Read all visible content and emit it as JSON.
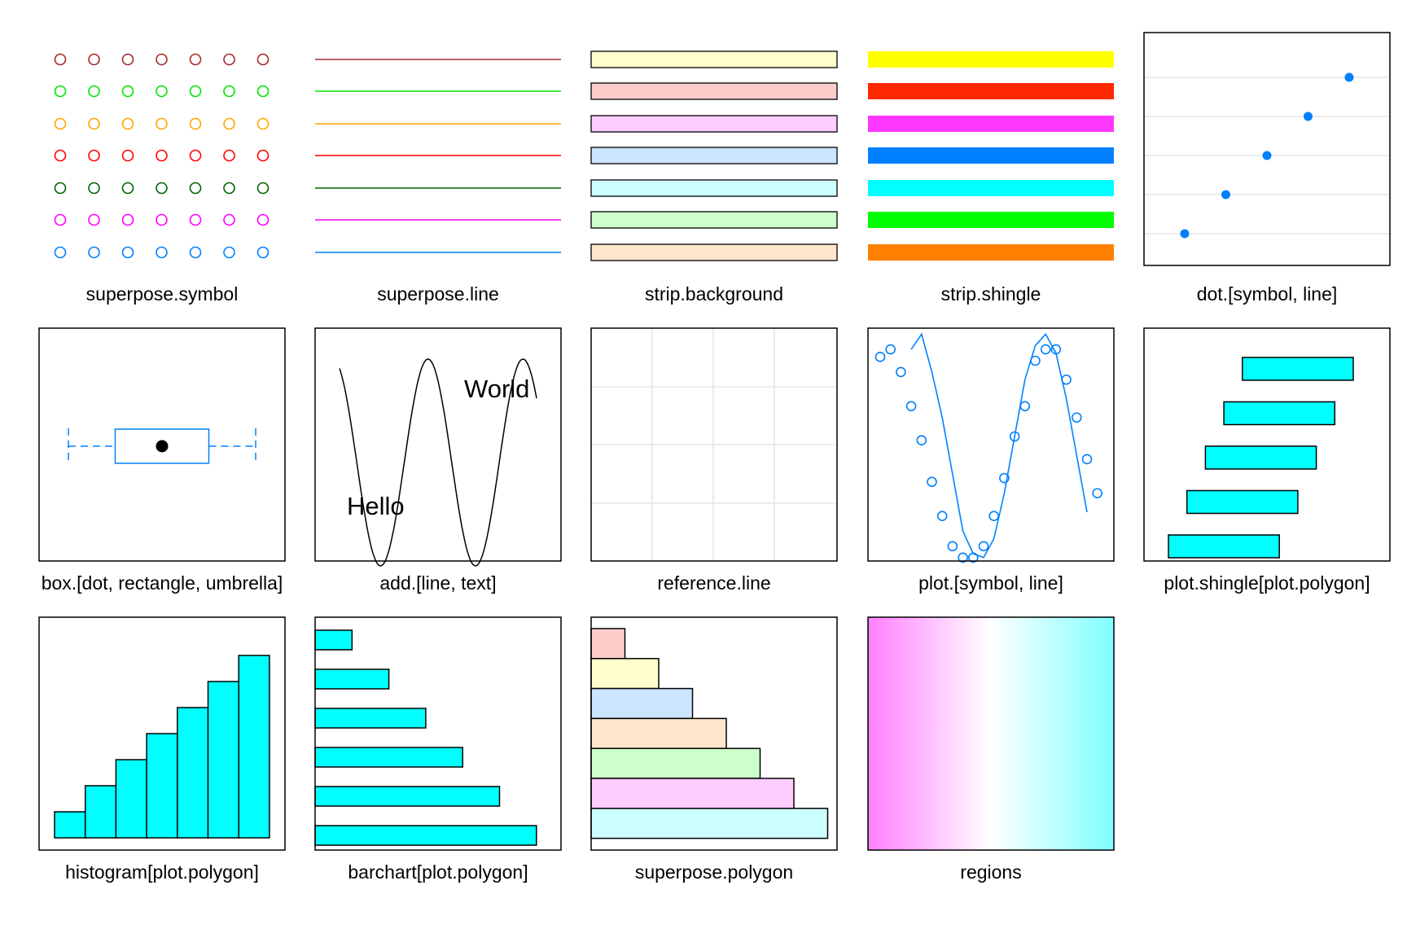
{
  "panels": [
    {
      "label": "superpose.symbol"
    },
    {
      "label": "superpose.line"
    },
    {
      "label": "strip.background"
    },
    {
      "label": "strip.shingle"
    },
    {
      "label": "dot.[symbol, line]"
    },
    {
      "label": "box.[dot, rectangle, umbrella]"
    },
    {
      "label": "add.[line, text]"
    },
    {
      "label": "reference.line"
    },
    {
      "label": "plot.[symbol, line]"
    },
    {
      "label": "plot.shingle[plot.polygon]"
    },
    {
      "label": "histogram[plot.polygon]"
    },
    {
      "label": "barchart[plot.polygon]"
    },
    {
      "label": "superpose.polygon"
    },
    {
      "label": "regions"
    }
  ],
  "add_text": {
    "hello": "Hello",
    "world": "World"
  },
  "colors": {
    "superpose": [
      "#A52A2A",
      "#00E400",
      "#FFA500",
      "#FF0000",
      "#006400",
      "#FF00FF",
      "#0080FF"
    ],
    "strip_background": [
      "#FFFFCC",
      "#FFCCCC",
      "#FFCCFF",
      "#CCE5FF",
      "#CCFFFF",
      "#CCFFCC",
      "#FFE5CC"
    ],
    "strip_shingle": [
      "#FFFF00",
      "#FF2800",
      "#FF37FF",
      "#0080FF",
      "#00FFFF",
      "#00FF00",
      "#FF8000"
    ],
    "polygon_fill": "#00FFFF",
    "symbol": "#0080FF",
    "reference_line": "#E6E6E6",
    "regions": [
      "#FF80FF",
      "#FFFFFF",
      "#80FFFF"
    ]
  },
  "chart_data": [
    {
      "type": "scatter",
      "panel": "dot.[symbol, line]",
      "x": [
        1,
        2,
        3,
        4,
        5
      ],
      "y": [
        1,
        2,
        3,
        4,
        5
      ]
    },
    {
      "type": "box",
      "panel": "box.[dot, rectangle, umbrella]",
      "stats": {
        "min": 1,
        "q1": 3,
        "median": 5,
        "q3": 7,
        "max": 9
      }
    },
    {
      "type": "line",
      "panel": "add.[line, text]",
      "function": "sin",
      "x_start": 0.5,
      "x_end": 12.2
    },
    {
      "type": "scatter",
      "panel": "plot.[symbol, line]",
      "points": [
        [
          1,
          0.05
        ],
        [
          2,
          0.15
        ],
        [
          3,
          -0.15
        ],
        [
          4,
          -0.6
        ],
        [
          5,
          -1.05
        ],
        [
          6,
          -1.6
        ],
        [
          7,
          -2.05
        ],
        [
          8,
          -2.45
        ],
        [
          9,
          -2.6
        ],
        [
          10,
          -2.6
        ],
        [
          11,
          -2.45
        ],
        [
          12,
          -2.05
        ],
        [
          13,
          -1.55
        ],
        [
          14,
          -1.0
        ],
        [
          15,
          -0.6
        ],
        [
          16,
          0.0
        ],
        [
          17,
          0.15
        ],
        [
          18,
          0.15
        ],
        [
          19,
          -0.25
        ],
        [
          20,
          -0.75
        ],
        [
          21,
          -1.3
        ],
        [
          22,
          -1.75
        ]
      ],
      "line": [
        [
          4,
          0.15
        ],
        [
          5,
          0.35
        ],
        [
          6,
          -0.15
        ],
        [
          7,
          -0.75
        ],
        [
          8,
          -1.5
        ],
        [
          9,
          -2.25
        ],
        [
          10,
          -2.55
        ],
        [
          11,
          -2.6
        ],
        [
          12,
          -2.35
        ],
        [
          13,
          -1.75
        ],
        [
          14,
          -1.0
        ],
        [
          15,
          -0.25
        ],
        [
          16,
          0.2
        ],
        [
          17,
          0.35
        ],
        [
          18,
          0.1
        ],
        [
          19,
          -0.5
        ],
        [
          20,
          -1.25
        ],
        [
          21,
          -2.0
        ]
      ]
    },
    {
      "type": "bar",
      "panel": "plot.shingle[plot.polygon]",
      "intervals": [
        [
          1,
          4
        ],
        [
          1.5,
          4.5
        ],
        [
          2,
          5
        ],
        [
          2.5,
          5.5
        ],
        [
          3,
          6
        ]
      ]
    },
    {
      "type": "bar",
      "panel": "histogram[plot.polygon]",
      "values": [
        1,
        2,
        3,
        4,
        5,
        6,
        7
      ]
    },
    {
      "type": "bar",
      "panel": "barchart[plot.polygon]",
      "values": [
        1,
        2,
        3,
        4,
        5,
        6
      ]
    },
    {
      "type": "bar",
      "panel": "superpose.polygon",
      "values": [
        1,
        2,
        3,
        4,
        5,
        6,
        7
      ]
    }
  ]
}
